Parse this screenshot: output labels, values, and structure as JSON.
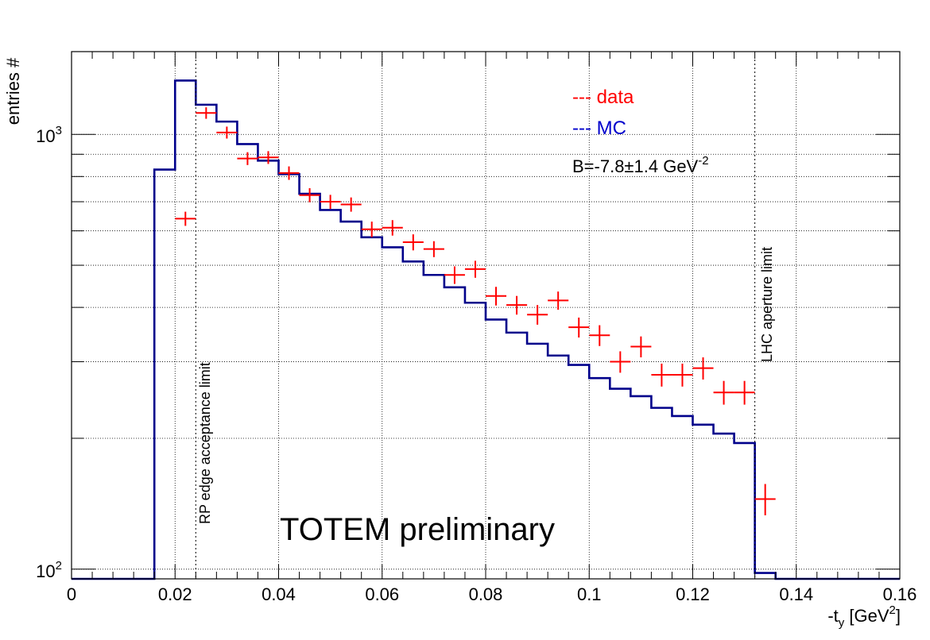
{
  "chart_data": {
    "type": "scatter",
    "xlabel_main": "-t",
    "xlabel_sub": "y",
    "xlabel_unit": "[GeV",
    "xlabel_sup": "2",
    "xlabel_close": "]",
    "ylabel": "entries #",
    "xlim": [
      0,
      0.16
    ],
    "ylim": [
      95,
      1550
    ],
    "yscale": "log",
    "grid": true,
    "x_ticks": [
      {
        "v": 0,
        "label": "0"
      },
      {
        "v": 0.02,
        "label": "0.02"
      },
      {
        "v": 0.04,
        "label": "0.04"
      },
      {
        "v": 0.06,
        "label": "0.06"
      },
      {
        "v": 0.08,
        "label": "0.08"
      },
      {
        "v": 0.1,
        "label": "0.1"
      },
      {
        "v": 0.12,
        "label": "0.12"
      },
      {
        "v": 0.14,
        "label": "0.14"
      },
      {
        "v": 0.16,
        "label": "0.16"
      }
    ],
    "y_ticks": [
      {
        "v": 100,
        "base": "10",
        "exp": "2"
      },
      {
        "v": 1000,
        "base": "10",
        "exp": "3"
      }
    ],
    "legend": [
      {
        "label": "--- data",
        "color": "#ff0000"
      },
      {
        "label": "--- MC",
        "color": "#0000cc"
      }
    ],
    "fit_text": "B=-7.8±1.4 GeV",
    "fit_sup": "-2",
    "watermark": "TOTEM preliminary",
    "annotations": [
      {
        "text": "RP edge acceptance limit",
        "x": 0.024
      },
      {
        "text": "LHC aperture limit",
        "x": 0.132
      }
    ],
    "series": [
      {
        "name": "MC",
        "color": "#00008b",
        "kind": "histogram",
        "edges": [
          0.016,
          0.02,
          0.024,
          0.028,
          0.032,
          0.036,
          0.04,
          0.044,
          0.048,
          0.052,
          0.056,
          0.06,
          0.064,
          0.068,
          0.072,
          0.076,
          0.08,
          0.084,
          0.088,
          0.092,
          0.096,
          0.1,
          0.104,
          0.108,
          0.112,
          0.116,
          0.12,
          0.124,
          0.128,
          0.132,
          0.136
        ],
        "values": [
          830,
          1330,
          1170,
          1070,
          950,
          870,
          810,
          730,
          670,
          630,
          580,
          550,
          510,
          475,
          445,
          410,
          375,
          350,
          330,
          310,
          295,
          275,
          260,
          250,
          235,
          225,
          215,
          205,
          195,
          98
        ]
      },
      {
        "name": "data",
        "color": "#ff0000",
        "kind": "points",
        "x": [
          0.022,
          0.026,
          0.03,
          0.034,
          0.038,
          0.042,
          0.046,
          0.05,
          0.054,
          0.058,
          0.062,
          0.066,
          0.07,
          0.074,
          0.078,
          0.082,
          0.086,
          0.09,
          0.094,
          0.098,
          0.102,
          0.106,
          0.11,
          0.114,
          0.118,
          0.122,
          0.126,
          0.13,
          0.134
        ],
        "y": [
          640,
          1120,
          1010,
          880,
          885,
          815,
          725,
          700,
          690,
          605,
          610,
          565,
          545,
          475,
          490,
          425,
          405,
          385,
          415,
          360,
          345,
          300,
          325,
          280,
          280,
          290,
          255,
          255,
          145
        ],
        "yerr": [
          24,
          34,
          32,
          30,
          30,
          29,
          27,
          26,
          26,
          25,
          25,
          24,
          23,
          22,
          22,
          21,
          20,
          20,
          20,
          19,
          19,
          17,
          18,
          17,
          17,
          17,
          16,
          16,
          12
        ],
        "xerr": 0.002
      }
    ]
  }
}
